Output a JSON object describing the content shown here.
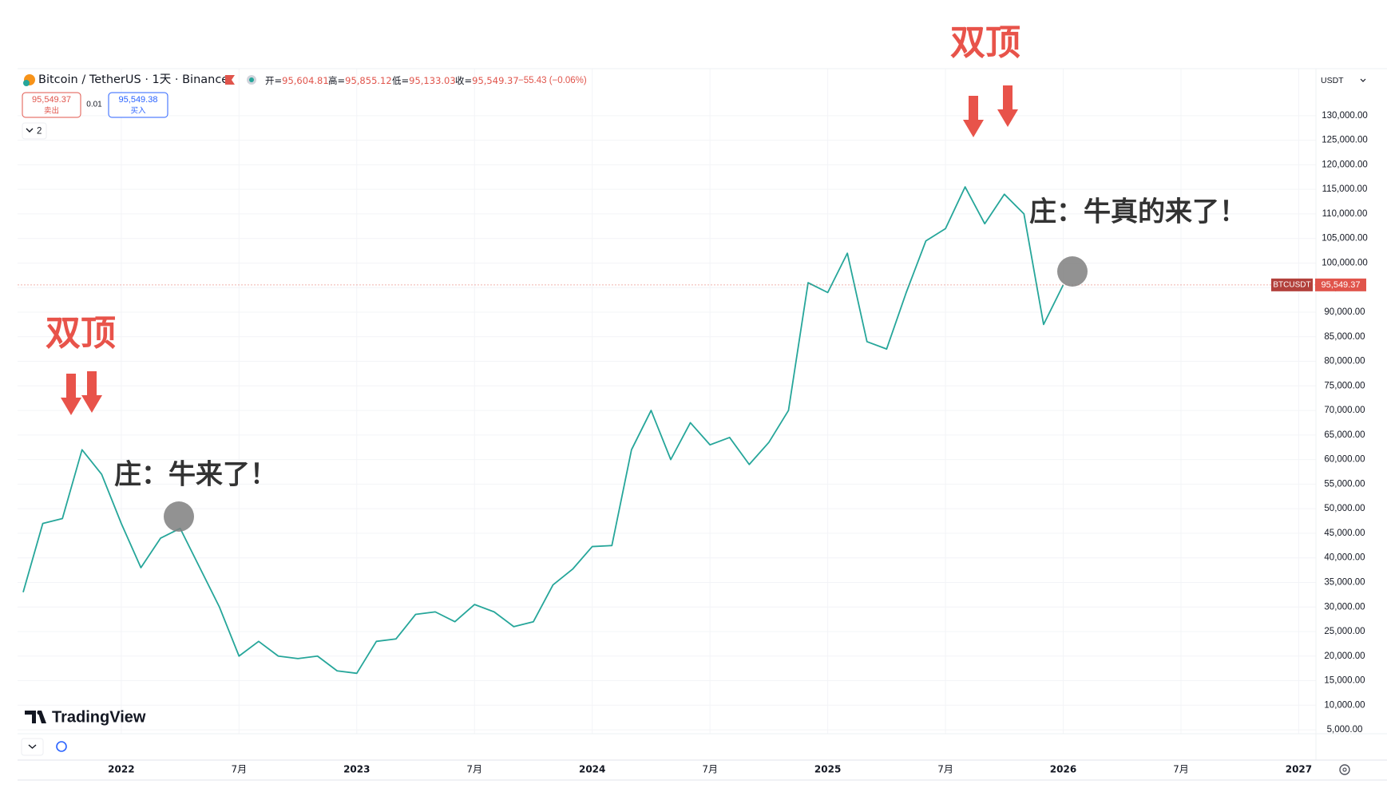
{
  "header": {
    "symbol": "Bitcoin / TetherUS · 1天 · Binance",
    "ohlc": [
      {
        "name": "开=",
        "value": "95,604.81"
      },
      {
        "name": "高=",
        "value": "95,855.12"
      },
      {
        "name": "低=",
        "value": "95,133.03"
      },
      {
        "name": "收=",
        "value": "95,549.37"
      }
    ],
    "change": "−55.43 (−0.06%)",
    "sell": {
      "price": "95,549.37",
      "label": "卖出"
    },
    "spread": "0.01",
    "buy": {
      "price": "95,549.38",
      "label": "买入"
    },
    "panes": "2",
    "currency": "USDT"
  },
  "logo": "TradingView",
  "chart_data": {
    "type": "line",
    "color": "#26a69a",
    "x": [
      "2021-08",
      "2021-09",
      "2021-10",
      "2021-11",
      "2021-12",
      "2022-01",
      "2022-02",
      "2022-03",
      "2022-04",
      "2022-05",
      "2022-06",
      "2022-07",
      "2022-08",
      "2022-09",
      "2022-10",
      "2022-11",
      "2022-12",
      "2023-01",
      "2023-02",
      "2023-03",
      "2023-04",
      "2023-05",
      "2023-06",
      "2023-07",
      "2023-08",
      "2023-09",
      "2023-10",
      "2023-11",
      "2023-12",
      "2024-01",
      "2024-02",
      "2024-03",
      "2024-04",
      "2024-05",
      "2024-06",
      "2024-07",
      "2024-08",
      "2024-09",
      "2024-10",
      "2024-11",
      "2024-12",
      "2025-01",
      "2025-02",
      "2025-03",
      "2025-04",
      "2025-05",
      "2025-06",
      "2025-07",
      "2025-08",
      "2025-09",
      "2025-10",
      "2025-11",
      "2025-12",
      "2026-01"
    ],
    "values": [
      33000,
      47000,
      48000,
      62000,
      57000,
      47000,
      38000,
      44000,
      46000,
      38000,
      30000,
      20000,
      23000,
      20000,
      19500,
      20000,
      17000,
      16500,
      23000,
      23500,
      28500,
      29000,
      27000,
      30500,
      29000,
      26000,
      27000,
      34500,
      37700,
      42300,
      42500,
      62000,
      70000,
      60000,
      67500,
      63000,
      64500,
      59000,
      63500,
      70000,
      96000,
      94000,
      102000,
      84000,
      82500,
      94000,
      104500,
      107000,
      115500,
      108000,
      114000,
      110000,
      87500,
      95549.37
    ],
    "xlim": [
      "2021-08",
      "2027-02"
    ],
    "xticks": [
      {
        "value": "2022-01",
        "label": "2022"
      },
      {
        "value": "2022-07",
        "label": "7月"
      },
      {
        "value": "2023-01",
        "label": "2023"
      },
      {
        "value": "2023-07",
        "label": "7月"
      },
      {
        "value": "2024-01",
        "label": "2024"
      },
      {
        "value": "2024-07",
        "label": "7月"
      },
      {
        "value": "2025-01",
        "label": "2025"
      },
      {
        "value": "2025-07",
        "label": "7月"
      },
      {
        "value": "2026-01",
        "label": "2026"
      },
      {
        "value": "2026-07",
        "label": "7月"
      },
      {
        "value": "2027-01",
        "label": "2027"
      }
    ],
    "ylim": [
      4200,
      139400
    ],
    "yticks": [
      {
        "value": 5000,
        "label": "5,000.00"
      },
      {
        "value": 10000,
        "label": "10,000.00"
      },
      {
        "value": 15000,
        "label": "15,000.00"
      },
      {
        "value": 20000,
        "label": "20,000.00"
      },
      {
        "value": 25000,
        "label": "25,000.00"
      },
      {
        "value": 30000,
        "label": "30,000.00"
      },
      {
        "value": 35000,
        "label": "35,000.00"
      },
      {
        "value": 40000,
        "label": "40,000.00"
      },
      {
        "value": 45000,
        "label": "45,000.00"
      },
      {
        "value": 50000,
        "label": "50,000.00"
      },
      {
        "value": 55000,
        "label": "55,000.00"
      },
      {
        "value": 60000,
        "label": "60,000.00"
      },
      {
        "value": 65000,
        "label": "65,000.00"
      },
      {
        "value": 70000,
        "label": "70,000.00"
      },
      {
        "value": 75000,
        "label": "75,000.00"
      },
      {
        "value": 80000,
        "label": "80,000.00"
      },
      {
        "value": 85000,
        "label": "85,000.00"
      },
      {
        "value": 90000,
        "label": "90,000.00"
      },
      {
        "value": 95000,
        "label": "95,000.00"
      },
      {
        "value": 100000,
        "label": "100,000.00"
      },
      {
        "value": 105000,
        "label": "105,000.00"
      },
      {
        "value": 110000,
        "label": "110,000.00"
      },
      {
        "value": 115000,
        "label": "115,000.00"
      },
      {
        "value": 120000,
        "label": "120,000.00"
      },
      {
        "value": 125000,
        "label": "125,000.00"
      },
      {
        "value": 130000,
        "label": "130,000.00"
      }
    ],
    "grid": true,
    "last_price": {
      "name": "BTCUSDT",
      "value": 95549.37,
      "value_label": "95,549.37"
    },
    "annotations": [
      "双顶",
      "庄：牛真的来了！",
      "双顶",
      "庄：牛来了！"
    ]
  }
}
